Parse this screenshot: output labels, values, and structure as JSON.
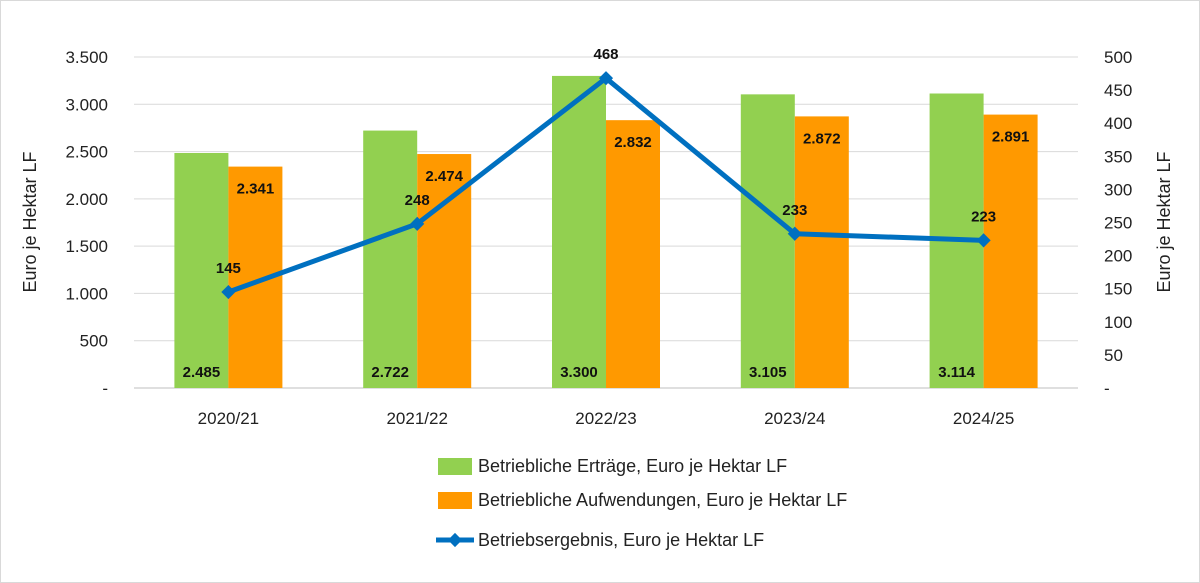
{
  "chart_data": {
    "type": "bar",
    "combo": "bar+line",
    "categories": [
      "2020/21",
      "2021/22",
      "2022/23",
      "2023/24",
      "2024/25"
    ],
    "series": [
      {
        "name": "Betriebliche Erträge, Euro je Hektar LF",
        "kind": "bar",
        "axis": "left",
        "color": "#92d050",
        "values": [
          2485,
          2722,
          3300,
          3105,
          3114
        ],
        "labels": [
          "2.485",
          "2.722",
          "3.300",
          "3.105",
          "3.114"
        ]
      },
      {
        "name": "Betriebliche Aufwendungen, Euro je Hektar LF",
        "kind": "bar",
        "axis": "left",
        "color": "#ff9900",
        "values": [
          2341,
          2474,
          2832,
          2872,
          2891
        ],
        "labels": [
          "2.341",
          "2.474",
          "2.832",
          "2.872",
          "2.891"
        ]
      },
      {
        "name": "Betriebsergebnis, Euro je Hektar LF",
        "kind": "line",
        "axis": "right",
        "color": "#0070c0",
        "marker": "diamond",
        "values": [
          145,
          248,
          468,
          233,
          223
        ],
        "labels": [
          "145",
          "248",
          "468",
          "233",
          "223"
        ]
      }
    ],
    "y_left": {
      "label": "Euro je Hektar LF",
      "lim": [
        0,
        3500
      ],
      "ticks": [
        0,
        500,
        1000,
        1500,
        2000,
        2500,
        3000,
        3500
      ],
      "tick_labels": [
        "-",
        "500",
        "1.000",
        "1.500",
        "2.000",
        "2.500",
        "3.000",
        "3.500"
      ]
    },
    "y_right": {
      "label": "Euro je Hektar LF",
      "lim": [
        0,
        500
      ],
      "ticks": [
        0,
        50,
        100,
        150,
        200,
        250,
        300,
        350,
        400,
        450,
        500
      ],
      "tick_labels": [
        "-",
        "50",
        "100",
        "150",
        "200",
        "250",
        "300",
        "350",
        "400",
        "450",
        "500"
      ]
    },
    "grid": true,
    "legend": "bottom"
  }
}
